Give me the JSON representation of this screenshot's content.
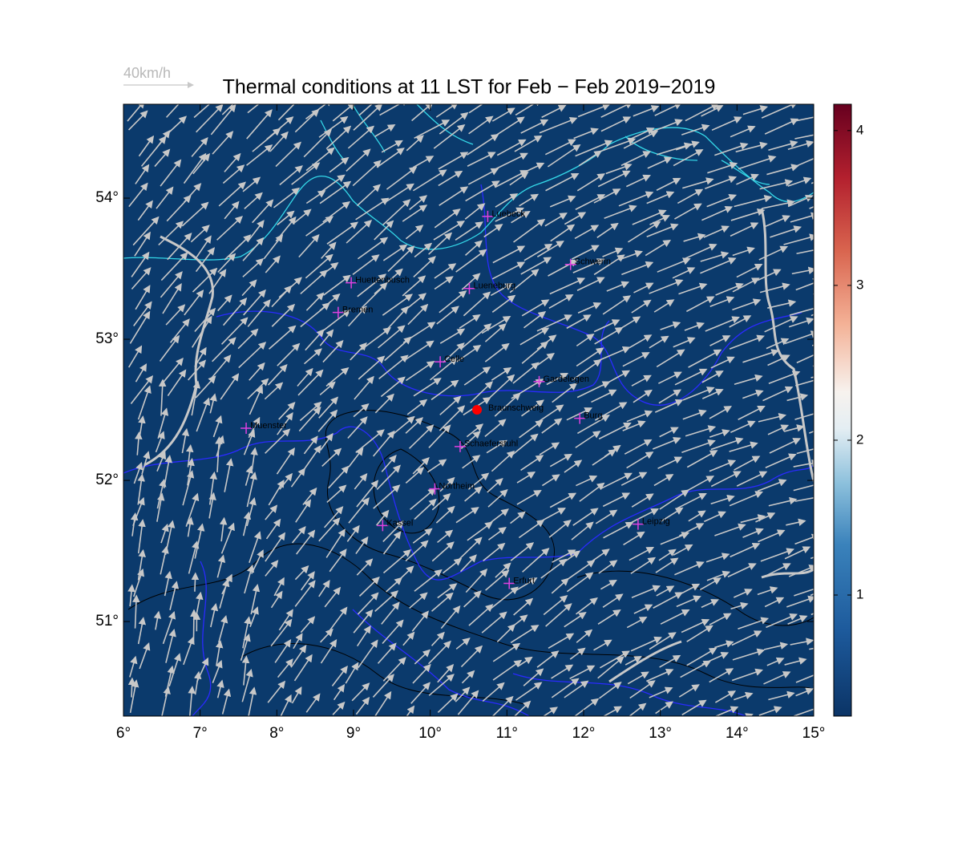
{
  "map": {
    "title": "Thermal conditions at 11 LST for Feb − Feb  2019−2019",
    "reference_arrow": "40km/h",
    "xlim": [
      6,
      15
    ],
    "ylim": [
      50.33,
      54.665
    ],
    "xticks": [
      {
        "value": 6,
        "label": "6°"
      },
      {
        "value": 7,
        "label": "7°"
      },
      {
        "value": 8,
        "label": "8°"
      },
      {
        "value": 9,
        "label": "9°"
      },
      {
        "value": 10,
        "label": "10°"
      },
      {
        "value": 11,
        "label": "11°"
      },
      {
        "value": 12,
        "label": "12°"
      },
      {
        "value": 13,
        "label": "13°"
      },
      {
        "value": 14,
        "label": "14°"
      },
      {
        "value": 15,
        "label": "15°"
      }
    ],
    "yticks": [
      {
        "value": 51,
        "label": "51°"
      },
      {
        "value": 52,
        "label": "52°"
      },
      {
        "value": 53,
        "label": "53°"
      },
      {
        "value": 54,
        "label": "54°"
      }
    ],
    "cities": [
      {
        "name": "Luebeck",
        "lon": 10.75,
        "lat": 53.87
      },
      {
        "name": "Schwerin",
        "lon": 11.83,
        "lat": 53.53
      },
      {
        "name": "Huettenbusch",
        "lon": 8.97,
        "lat": 53.4
      },
      {
        "name": "Lueneburg",
        "lon": 10.51,
        "lat": 53.36
      },
      {
        "name": "Bremen",
        "lon": 8.8,
        "lat": 53.19
      },
      {
        "name": "Celle",
        "lon": 10.13,
        "lat": 52.84
      },
      {
        "name": "Gardelegen",
        "lon": 11.42,
        "lat": 52.7
      },
      {
        "name": "Burg",
        "lon": 11.95,
        "lat": 52.44
      },
      {
        "name": "Muenster",
        "lon": 7.6,
        "lat": 52.37
      },
      {
        "name": "Schaeferstuhl",
        "lon": 10.39,
        "lat": 52.24
      },
      {
        "name": "Northeim",
        "lon": 10.06,
        "lat": 51.94
      },
      {
        "name": "Leipzig",
        "lon": 12.71,
        "lat": 51.69
      },
      {
        "name": "Kassel",
        "lon": 9.38,
        "lat": 51.68
      },
      {
        "name": "Erfurt",
        "lon": 11.03,
        "lat": 51.27
      }
    ],
    "site": {
      "name": "Braunschweig",
      "lon": 10.61,
      "lat": 52.5,
      "color": "#ff0000"
    }
  },
  "colorbar": {
    "lim": [
      0.218,
      4.17
    ],
    "ticks": [
      1,
      2,
      3,
      4
    ]
  }
}
